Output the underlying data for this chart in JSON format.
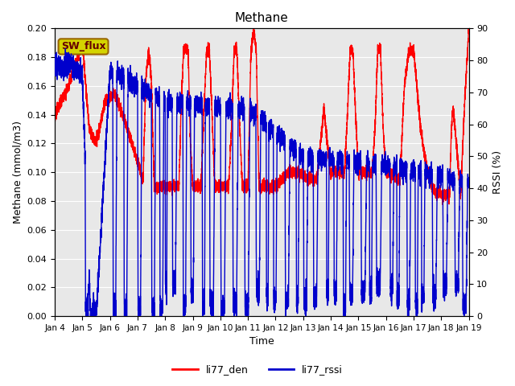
{
  "title": "Methane",
  "ylabel_left": "Methane (mmol/m3)",
  "ylabel_right": "RSSI (%)",
  "xlabel": "Time",
  "ylim_left": [
    0.0,
    0.2
  ],
  "ylim_right": [
    0,
    90
  ],
  "yticks_left": [
    0.0,
    0.02,
    0.04,
    0.06,
    0.08,
    0.1,
    0.12,
    0.14,
    0.16,
    0.18,
    0.2
  ],
  "yticks_right": [
    0,
    10,
    20,
    30,
    40,
    50,
    60,
    70,
    80,
    90
  ],
  "xtick_labels": [
    "Jan 4",
    "Jan 5",
    "Jan 6",
    "Jan 7",
    "Jan 8",
    "Jan 9",
    "Jan 10",
    "Jan 11",
    "Jan 12",
    "Jan 13",
    "Jan 14",
    "Jan 15",
    "Jan 16",
    "Jan 17",
    "Jan 18",
    "Jan 19"
  ],
  "color_red": "#ff0000",
  "color_blue": "#0000cc",
  "sw_flux_label": "SW_flux",
  "sw_flux_bg": "#d4d400",
  "sw_flux_border": "#996600",
  "plot_bg": "#e8e8e8",
  "legend_red": "li77_den",
  "legend_blue": "li77_rssi",
  "linewidth": 1.0
}
